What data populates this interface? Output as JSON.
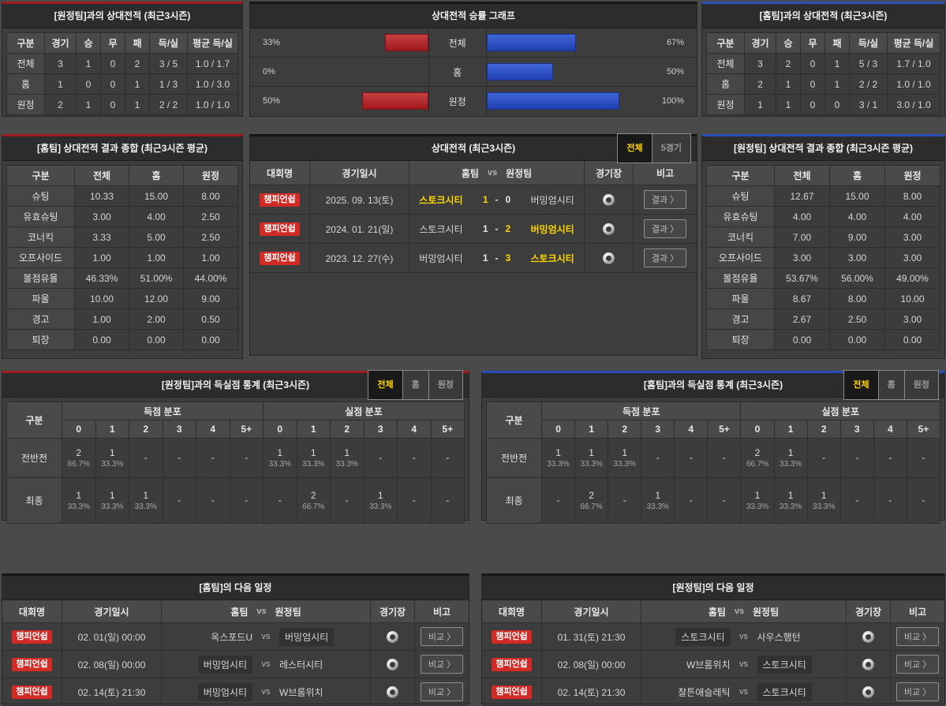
{
  "ui": {
    "dash": "-",
    "arrow": "〉",
    "vs": "vs",
    "colors": {
      "red_accent": "#9e1b20",
      "blue_accent": "#2a4db8",
      "bar_red": "#b02025",
      "bar_blue": "#2c4ec6",
      "highlight_yellow": "#ffd400",
      "badge_red": "#d42a26"
    }
  },
  "chart_data": {
    "type": "bar",
    "title": "상대전적 승률 그래프",
    "categories": [
      "전체",
      "홈",
      "원정"
    ],
    "series": [
      {
        "name": "좌측(적색) 승률",
        "values": [
          33,
          0,
          50
        ]
      },
      {
        "name": "우측(청색) 승률",
        "values": [
          67,
          50,
          100
        ]
      }
    ],
    "value_labels_left": [
      "33%",
      "0%",
      "50%"
    ],
    "value_labels_right": [
      "67%",
      "50%",
      "100%"
    ],
    "xlim": [
      0,
      100
    ],
    "orientation": "horizontal-mirrored",
    "grid": false,
    "legend": "none"
  },
  "vs_away_record": {
    "title": "[원정팀]과의 상대전적 (최근3시즌)",
    "headers": [
      "구분",
      "경기",
      "승",
      "무",
      "패",
      "득/실",
      "평균 득/실"
    ],
    "rows": [
      [
        "전체",
        "3",
        "1",
        "0",
        "2",
        "3 / 5",
        "1.0 / 1.7"
      ],
      [
        "홈",
        "1",
        "0",
        "0",
        "1",
        "1 / 3",
        "1.0 / 3.0"
      ],
      [
        "원정",
        "2",
        "1",
        "0",
        "1",
        "2 / 2",
        "1.0 / 1.0"
      ]
    ]
  },
  "vs_home_record": {
    "title": "[홈팀]과의 상대전적 (최근3시즌)",
    "headers": [
      "구분",
      "경기",
      "승",
      "무",
      "패",
      "득/실",
      "평균 득/실"
    ],
    "rows": [
      [
        "전체",
        "3",
        "2",
        "0",
        "1",
        "5 / 3",
        "1.7 / 1.0"
      ],
      [
        "홈",
        "2",
        "1",
        "0",
        "1",
        "2 / 2",
        "1.0 / 1.0"
      ],
      [
        "원정",
        "1",
        "1",
        "0",
        "0",
        "3 / 1",
        "3.0 / 1.0"
      ]
    ]
  },
  "chart": {
    "title": "상대전적 승률 그래프",
    "rows": [
      {
        "left_pct": "33%",
        "left_val": 33,
        "label": "전체",
        "right_val": 67,
        "right_pct": "67%"
      },
      {
        "left_pct": "0%",
        "left_val": 0,
        "label": "홈",
        "right_val": 50,
        "right_pct": "50%"
      },
      {
        "left_pct": "50%",
        "left_val": 50,
        "label": "원정",
        "right_val": 100,
        "right_pct": "100%"
      }
    ]
  },
  "home_summary": {
    "title": "[홈팀] 상대전적 결과 종합 (최근3시즌 평균)",
    "headers": [
      "구분",
      "전체",
      "홈",
      "원정"
    ],
    "rows": [
      [
        "슈팅",
        "10.33",
        "15.00",
        "8.00"
      ],
      [
        "유효슈팅",
        "3.00",
        "4.00",
        "2.50"
      ],
      [
        "코너킥",
        "3.33",
        "5.00",
        "2.50"
      ],
      [
        "오프사이드",
        "1.00",
        "1.00",
        "1.00"
      ],
      [
        "볼점유율",
        "46.33%",
        "51.00%",
        "44.00%"
      ],
      [
        "파울",
        "10.00",
        "12.00",
        "9.00"
      ],
      [
        "경고",
        "1.00",
        "2.00",
        "0.50"
      ],
      [
        "퇴장",
        "0.00",
        "0.00",
        "0.00"
      ]
    ]
  },
  "away_summary": {
    "title": "[원정팀] 상대전적 결과 종합 (최근3시즌 평균)",
    "headers": [
      "구분",
      "전체",
      "홈",
      "원정"
    ],
    "rows": [
      [
        "슈팅",
        "12.67",
        "15.00",
        "8.00"
      ],
      [
        "유효슈팅",
        "4.00",
        "4.00",
        "4.00"
      ],
      [
        "코너킥",
        "7.00",
        "9.00",
        "3.00"
      ],
      [
        "오프사이드",
        "3.00",
        "3.00",
        "3.00"
      ],
      [
        "볼점유율",
        "53.67%",
        "56.00%",
        "49.00%"
      ],
      [
        "파울",
        "8.67",
        "8.00",
        "10.00"
      ],
      [
        "경고",
        "2.67",
        "2.50",
        "3.00"
      ],
      [
        "퇴장",
        "0.00",
        "0.00",
        "0.00"
      ]
    ]
  },
  "h2h": {
    "title": "상대전적 (최근3시즌)",
    "tabs": [
      {
        "label": "전체",
        "active": true
      },
      {
        "label": "5경기",
        "active": false
      }
    ],
    "headers": {
      "league": "대회명",
      "date": "경기일시",
      "home": "홈팀",
      "vs": "vs",
      "away": "원정팀",
      "stadium": "경기장",
      "note": "비고"
    },
    "rows": [
      {
        "league": "챔피언쉽",
        "date": "2025. 09. 13(토)",
        "home": "스토크시티",
        "home_win": true,
        "score_home": "1",
        "score_home_win": true,
        "score_away": "0",
        "score_away_win": false,
        "away": "버밍엄시티",
        "away_win": false,
        "button": "결과"
      },
      {
        "league": "챔피언쉽",
        "date": "2024. 01. 21(일)",
        "home": "스토크시티",
        "home_win": false,
        "score_home": "1",
        "score_home_win": false,
        "score_away": "2",
        "score_away_win": true,
        "away": "버밍엄시티",
        "away_win": true,
        "button": "결과"
      },
      {
        "league": "챔피언쉽",
        "date": "2023. 12. 27(수)",
        "home": "버밍엄시티",
        "home_win": false,
        "score_home": "1",
        "score_home_win": false,
        "score_away": "3",
        "score_away_win": true,
        "away": "스토크시티",
        "away_win": true,
        "button": "결과"
      }
    ]
  },
  "goals_vs_away": {
    "title": "[원정팀]과의 득실점 통계 (최근3시즌)",
    "tabs": [
      {
        "label": "전체",
        "active": true
      },
      {
        "label": "홈",
        "active": false
      },
      {
        "label": "원정",
        "active": false
      }
    ],
    "corner": "구분",
    "group_scored": "득점 분포",
    "group_conceded": "실점 분포",
    "cols": [
      "0",
      "1",
      "2",
      "3",
      "4",
      "5+"
    ],
    "rows": [
      {
        "label": "전반전",
        "scored": [
          {
            "n": "2",
            "pct": "66.7%"
          },
          {
            "n": "1",
            "pct": "33.3%"
          },
          {
            "n": "-",
            "pct": ""
          },
          {
            "n": "-",
            "pct": ""
          },
          {
            "n": "-",
            "pct": ""
          },
          {
            "n": "-",
            "pct": ""
          }
        ],
        "conceded": [
          {
            "n": "1",
            "pct": "33.3%"
          },
          {
            "n": "1",
            "pct": "33.3%"
          },
          {
            "n": "1",
            "pct": "33.3%"
          },
          {
            "n": "-",
            "pct": ""
          },
          {
            "n": "-",
            "pct": ""
          },
          {
            "n": "-",
            "pct": ""
          }
        ]
      },
      {
        "label": "최종",
        "scored": [
          {
            "n": "1",
            "pct": "33.3%"
          },
          {
            "n": "1",
            "pct": "33.3%"
          },
          {
            "n": "1",
            "pct": "33.3%"
          },
          {
            "n": "-",
            "pct": ""
          },
          {
            "n": "-",
            "pct": ""
          },
          {
            "n": "-",
            "pct": ""
          }
        ],
        "conceded": [
          {
            "n": "-",
            "pct": ""
          },
          {
            "n": "2",
            "pct": "66.7%"
          },
          {
            "n": "-",
            "pct": ""
          },
          {
            "n": "1",
            "pct": "33.3%"
          },
          {
            "n": "-",
            "pct": ""
          },
          {
            "n": "-",
            "pct": ""
          }
        ]
      }
    ]
  },
  "goals_vs_home": {
    "title": "[홈팀]과의 득실점 통계 (최근3시즌)",
    "tabs": [
      {
        "label": "전체",
        "active": true
      },
      {
        "label": "홈",
        "active": false
      },
      {
        "label": "원정",
        "active": false
      }
    ],
    "corner": "구분",
    "group_scored": "득점 분포",
    "group_conceded": "실점 분포",
    "cols": [
      "0",
      "1",
      "2",
      "3",
      "4",
      "5+"
    ],
    "rows": [
      {
        "label": "전반전",
        "scored": [
          {
            "n": "1",
            "pct": "33.3%"
          },
          {
            "n": "1",
            "pct": "33.3%"
          },
          {
            "n": "1",
            "pct": "33.3%"
          },
          {
            "n": "-",
            "pct": ""
          },
          {
            "n": "-",
            "pct": ""
          },
          {
            "n": "-",
            "pct": ""
          }
        ],
        "conceded": [
          {
            "n": "2",
            "pct": "66.7%"
          },
          {
            "n": "1",
            "pct": "33.3%"
          },
          {
            "n": "-",
            "pct": ""
          },
          {
            "n": "-",
            "pct": ""
          },
          {
            "n": "-",
            "pct": ""
          },
          {
            "n": "-",
            "pct": ""
          }
        ]
      },
      {
        "label": "최종",
        "scored": [
          {
            "n": "-",
            "pct": ""
          },
          {
            "n": "2",
            "pct": "66.7%"
          },
          {
            "n": "-",
            "pct": ""
          },
          {
            "n": "1",
            "pct": "33.3%"
          },
          {
            "n": "-",
            "pct": ""
          },
          {
            "n": "-",
            "pct": ""
          }
        ],
        "conceded": [
          {
            "n": "1",
            "pct": "33.3%"
          },
          {
            "n": "1",
            "pct": "33.3%"
          },
          {
            "n": "1",
            "pct": "33.3%"
          },
          {
            "n": "-",
            "pct": ""
          },
          {
            "n": "-",
            "pct": ""
          },
          {
            "n": "-",
            "pct": ""
          }
        ]
      }
    ]
  },
  "home_schedule": {
    "title": "[홈팀]의 다음 일정",
    "headers": {
      "league": "대회명",
      "date": "경기일시",
      "home": "홈팀",
      "vs": "vs",
      "away": "원정팀",
      "stadium": "경기장",
      "note": "비고"
    },
    "rows": [
      {
        "league": "챔피언쉽",
        "date": "02. 01(일) 00:00",
        "home": "옥스포드U",
        "home_hl": false,
        "away": "버밍엄시티",
        "away_hl": true,
        "button": "비교"
      },
      {
        "league": "챔피언쉽",
        "date": "02. 08(일) 00:00",
        "home": "버밍엄시티",
        "home_hl": true,
        "away": "레스터시티",
        "away_hl": false,
        "button": "비교"
      },
      {
        "league": "챔피언쉽",
        "date": "02. 14(토) 21:30",
        "home": "버밍엄시티",
        "home_hl": true,
        "away": "W브롬위치",
        "away_hl": false,
        "button": "비교"
      }
    ]
  },
  "away_schedule": {
    "title": "[원정팀]의 다음 일정",
    "headers": {
      "league": "대회명",
      "date": "경기일시",
      "home": "홈팀",
      "vs": "vs",
      "away": "원정팀",
      "stadium": "경기장",
      "note": "비고"
    },
    "rows": [
      {
        "league": "챔피언쉽",
        "date": "01. 31(토) 21:30",
        "home": "스토크시티",
        "home_hl": true,
        "away": "사우스햄턴",
        "away_hl": false,
        "button": "비교"
      },
      {
        "league": "챔피언쉽",
        "date": "02. 08(일) 00:00",
        "home": "W브롬위치",
        "home_hl": false,
        "away": "스토크시티",
        "away_hl": true,
        "button": "비교"
      },
      {
        "league": "챔피언쉽",
        "date": "02. 14(토) 21:30",
        "home": "찰튼애슬레틱",
        "home_hl": false,
        "away": "스토크시티",
        "away_hl": true,
        "button": "비교"
      }
    ]
  }
}
